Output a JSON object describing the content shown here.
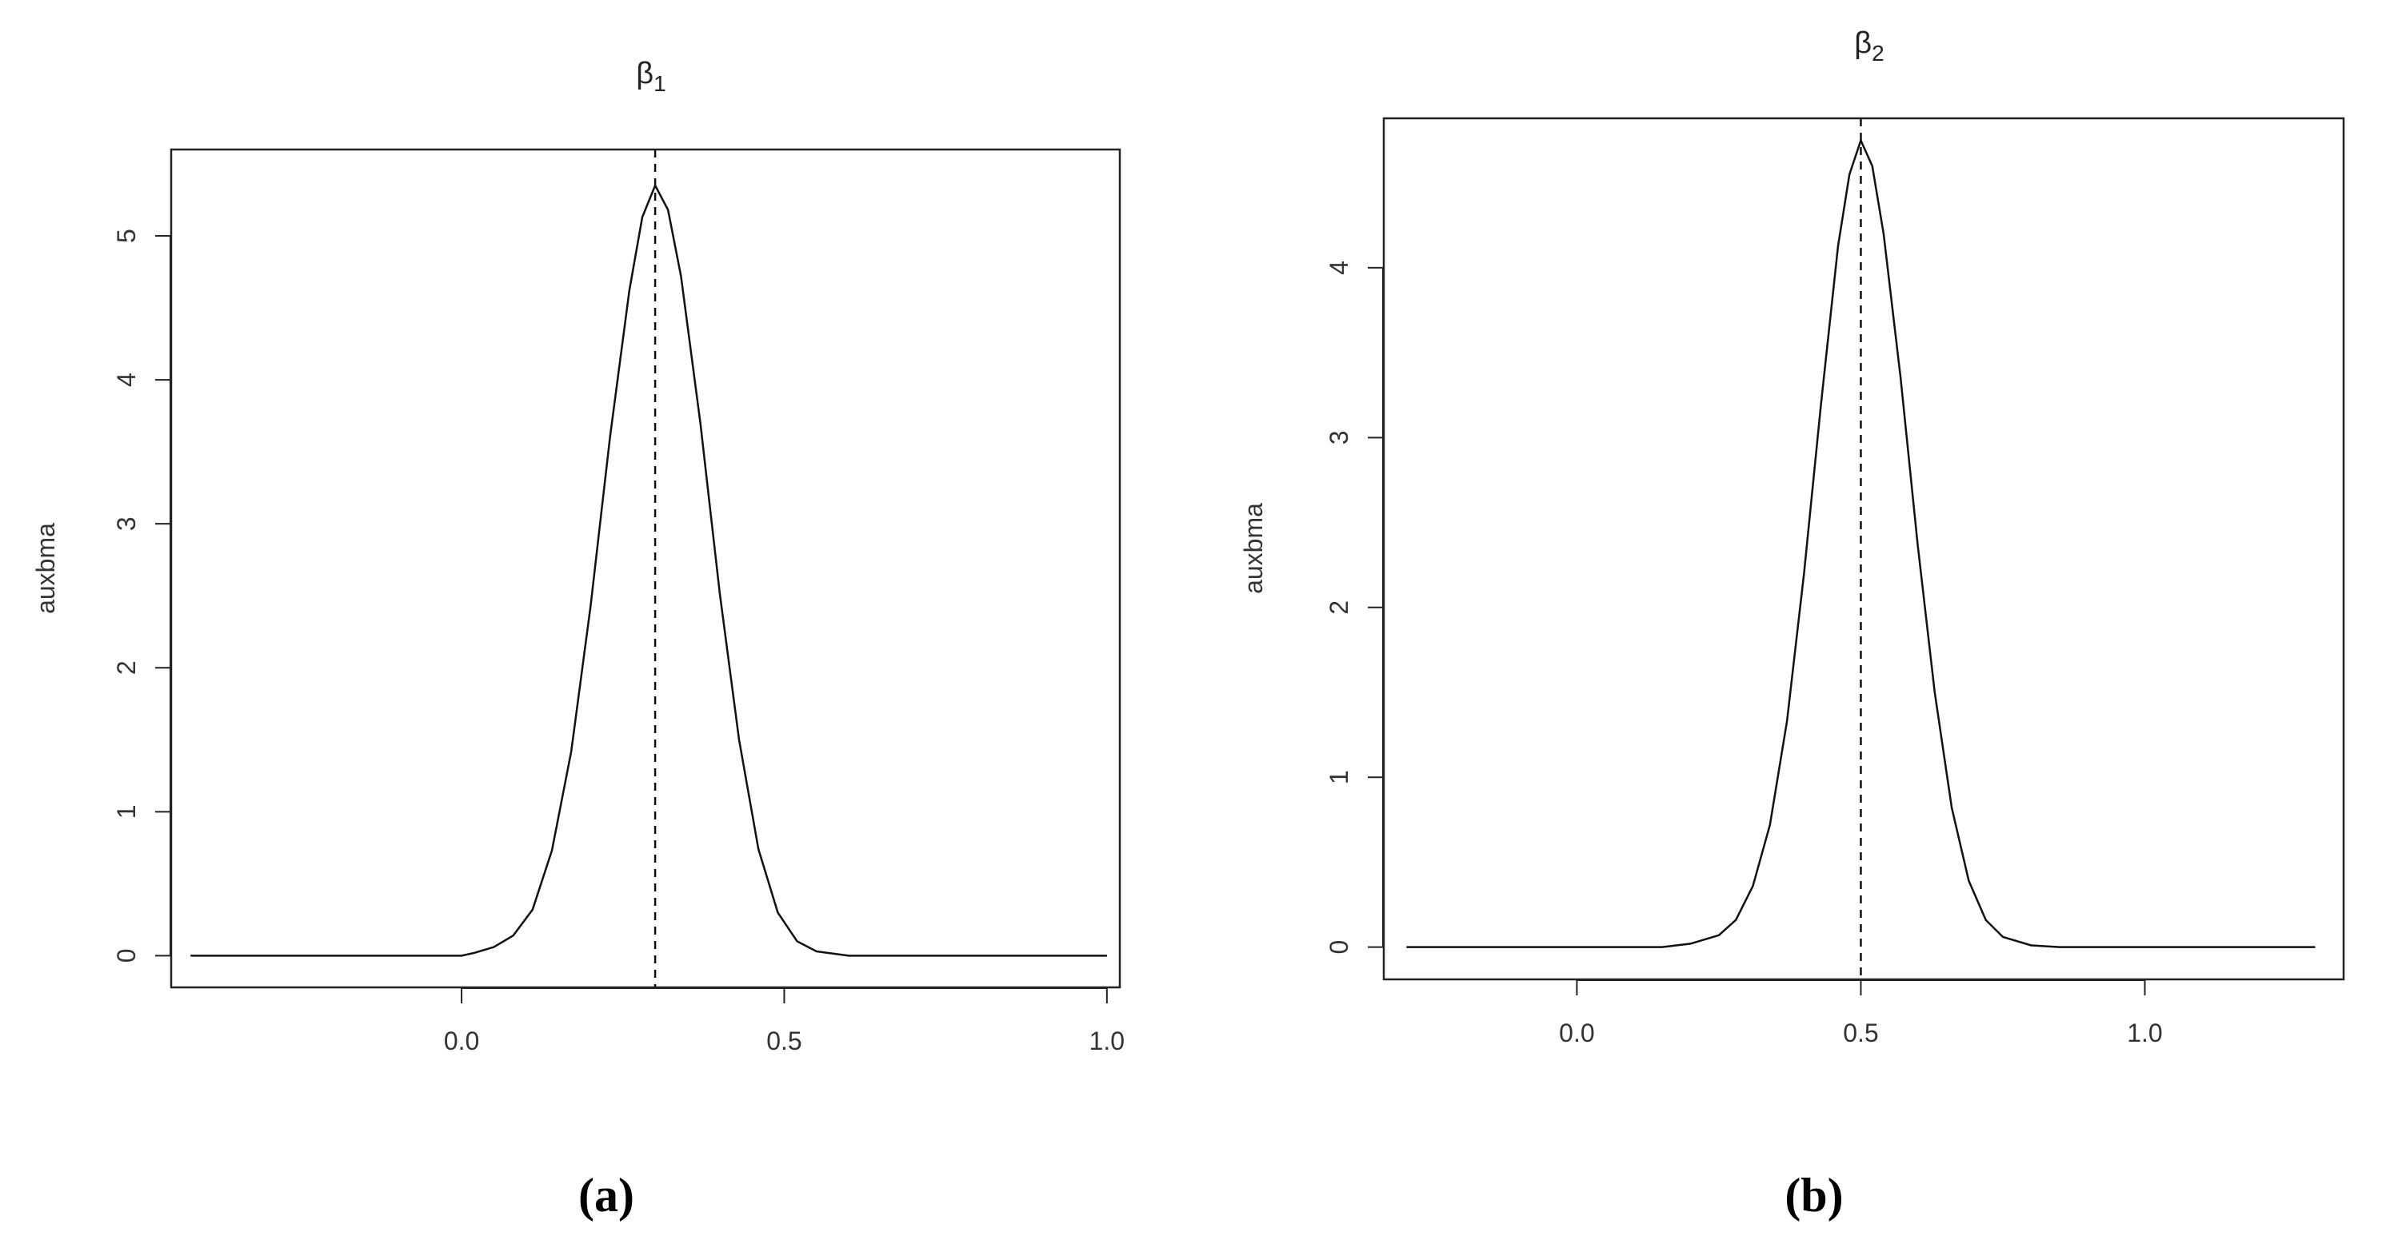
{
  "panels": [
    {
      "caption": "(a)",
      "chart_data": {
        "type": "line",
        "title": "β",
        "title_subscript": "1",
        "xlabel": "",
        "ylabel": "auxbma",
        "xlim": [
          -0.45,
          1.02
        ],
        "ylim": [
          -0.22,
          5.6
        ],
        "x_ticks": [
          0.0,
          0.5,
          1.0
        ],
        "x_tick_labels": [
          "0.0",
          "0.5",
          "1.0"
        ],
        "y_ticks": [
          0,
          1,
          2,
          3,
          4,
          5
        ],
        "y_tick_labels": [
          "0",
          "1",
          "2",
          "3",
          "4",
          "5"
        ],
        "grid": false,
        "vline": 0.3,
        "series": [
          {
            "x": [
              -0.42,
              -0.2,
              0.0,
              0.02,
              0.05,
              0.08,
              0.11,
              0.14,
              0.17,
              0.2,
              0.23,
              0.26,
              0.28,
              0.3,
              0.32,
              0.34,
              0.37,
              0.4,
              0.43,
              0.46,
              0.49,
              0.52,
              0.55,
              0.6,
              0.8,
              1.0
            ],
            "y": [
              0,
              0,
              0.0,
              0.02,
              0.06,
              0.14,
              0.32,
              0.73,
              1.42,
              2.43,
              3.6,
              4.62,
              5.13,
              5.35,
              5.18,
              4.72,
              3.7,
              2.52,
              1.5,
              0.74,
              0.3,
              0.1,
              0.03,
              0.0,
              0,
              0
            ]
          }
        ]
      }
    },
    {
      "caption": "(b)",
      "chart_data": {
        "type": "line",
        "title": "β",
        "title_subscript": "2",
        "xlabel": "",
        "ylabel": "auxbma",
        "xlim": [
          -0.34,
          1.35
        ],
        "ylim": [
          -0.19,
          4.88
        ],
        "x_ticks": [
          0.0,
          0.5,
          1.0
        ],
        "x_tick_labels": [
          "0.0",
          "0.5",
          "1.0"
        ],
        "y_ticks": [
          0,
          1,
          2,
          3,
          4
        ],
        "y_tick_labels": [
          "0",
          "1",
          "2",
          "3",
          "4"
        ],
        "grid": false,
        "vline": 0.5,
        "series": [
          {
            "x": [
              -0.3,
              0.0,
              0.15,
              0.2,
              0.25,
              0.28,
              0.31,
              0.34,
              0.37,
              0.4,
              0.43,
              0.46,
              0.48,
              0.5,
              0.52,
              0.54,
              0.57,
              0.6,
              0.63,
              0.66,
              0.69,
              0.72,
              0.75,
              0.8,
              0.85,
              1.0,
              1.3
            ],
            "y": [
              0,
              0,
              0.0,
              0.02,
              0.07,
              0.16,
              0.36,
              0.72,
              1.33,
              2.2,
              3.2,
              4.13,
              4.55,
              4.75,
              4.6,
              4.2,
              3.35,
              2.37,
              1.5,
              0.82,
              0.39,
              0.16,
              0.06,
              0.01,
              0.0,
              0,
              0
            ]
          }
        ]
      }
    }
  ]
}
